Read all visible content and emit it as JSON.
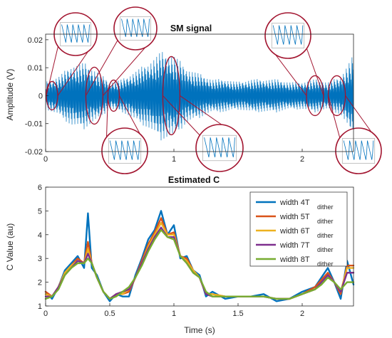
{
  "chart_data": [
    {
      "type": "line",
      "title": "SM signal",
      "xlabel": "",
      "ylabel": "Amplitude (V)",
      "xlim": [
        0,
        2.4
      ],
      "ylim": [
        -0.02,
        0.022
      ],
      "xticks": [
        "0",
        "1",
        "2"
      ],
      "yticks": [
        "-0.02",
        "-0.01",
        "0",
        "0.01",
        "0.02"
      ],
      "color": "#0072BD",
      "zoom_highlight_color": "#A2142F",
      "envelope": {
        "t": [
          0,
          0.1,
          0.2,
          0.3,
          0.4,
          0.5,
          0.6,
          0.7,
          0.8,
          0.9,
          1.0,
          1.1,
          1.2,
          1.3,
          1.4,
          1.5,
          1.6,
          1.7,
          1.8,
          1.9,
          2.0,
          2.1,
          2.2,
          2.3,
          2.4
        ],
        "amp": [
          0.005,
          0.007,
          0.011,
          0.012,
          0.009,
          0.005,
          0.006,
          0.009,
          0.012,
          0.016,
          0.015,
          0.01,
          0.008,
          0.006,
          0.006,
          0.005,
          0.006,
          0.006,
          0.006,
          0.005,
          0.005,
          0.006,
          0.005,
          0.007,
          0.015
        ]
      }
    },
    {
      "type": "line",
      "title": "Estimated C",
      "xlabel": "Time (s)",
      "ylabel": "C Value (au)",
      "xlim": [
        0,
        2.4
      ],
      "ylim": [
        1,
        6
      ],
      "xticks": [
        "0",
        "0.5",
        "1",
        "1.5",
        "2"
      ],
      "yticks": [
        "1",
        "2",
        "3",
        "4",
        "5",
        "6"
      ],
      "legend_position": "top-right",
      "x": [
        0,
        0.05,
        0.1,
        0.15,
        0.2,
        0.25,
        0.3,
        0.33,
        0.36,
        0.4,
        0.45,
        0.5,
        0.55,
        0.6,
        0.65,
        0.7,
        0.75,
        0.8,
        0.85,
        0.9,
        0.95,
        1.0,
        1.05,
        1.1,
        1.15,
        1.2,
        1.25,
        1.3,
        1.4,
        1.5,
        1.6,
        1.7,
        1.8,
        1.9,
        2.0,
        2.1,
        2.15,
        2.2,
        2.25,
        2.3,
        2.35,
        2.4
      ],
      "series": [
        {
          "name": "width 4T",
          "sub": "dither",
          "color": "#0072BD",
          "values": [
            1.6,
            1.3,
            1.8,
            2.5,
            2.8,
            3.1,
            2.6,
            4.9,
            2.6,
            2.3,
            1.6,
            1.2,
            1.5,
            1.4,
            1.4,
            2.3,
            3.0,
            3.8,
            4.2,
            5.0,
            4.0,
            4.4,
            3.0,
            3.1,
            2.5,
            2.3,
            1.4,
            1.6,
            1.3,
            1.4,
            1.4,
            1.5,
            1.2,
            1.3,
            1.6,
            1.8,
            2.2,
            2.6,
            2.0,
            1.3,
            2.9,
            1.9
          ]
        },
        {
          "name": "width 5T",
          "sub": "dither",
          "color": "#D95319",
          "values": [
            1.6,
            1.4,
            1.8,
            2.4,
            2.7,
            3.0,
            2.8,
            3.7,
            2.8,
            2.2,
            1.6,
            1.3,
            1.5,
            1.5,
            1.6,
            2.2,
            2.9,
            3.6,
            4.1,
            4.7,
            4.0,
            4.1,
            3.1,
            3.0,
            2.5,
            2.2,
            1.5,
            1.5,
            1.4,
            1.4,
            1.4,
            1.4,
            1.3,
            1.3,
            1.5,
            1.8,
            2.1,
            2.4,
            2.0,
            1.5,
            2.7,
            2.7
          ]
        },
        {
          "name": "width 6T",
          "sub": "dither",
          "color": "#EDB120",
          "values": [
            1.5,
            1.4,
            1.8,
            2.4,
            2.7,
            2.9,
            2.8,
            3.4,
            2.8,
            2.2,
            1.6,
            1.3,
            1.5,
            1.5,
            1.7,
            2.2,
            2.8,
            3.5,
            4.0,
            4.5,
            4.0,
            4.0,
            3.1,
            2.9,
            2.5,
            2.2,
            1.5,
            1.5,
            1.4,
            1.4,
            1.4,
            1.4,
            1.3,
            1.3,
            1.5,
            1.7,
            2.0,
            2.3,
            2.0,
            1.6,
            2.6,
            2.6
          ]
        },
        {
          "name": "width 7T",
          "sub": "dither",
          "color": "#7E2F8E",
          "values": [
            1.4,
            1.4,
            1.8,
            2.3,
            2.6,
            2.9,
            2.8,
            3.2,
            2.8,
            2.2,
            1.6,
            1.3,
            1.5,
            1.6,
            1.7,
            2.2,
            2.8,
            3.4,
            3.9,
            4.3,
            3.9,
            3.9,
            3.1,
            2.8,
            2.4,
            2.2,
            1.5,
            1.4,
            1.4,
            1.4,
            1.4,
            1.4,
            1.3,
            1.3,
            1.5,
            1.7,
            2.0,
            2.3,
            2.0,
            1.6,
            2.4,
            2.4
          ]
        },
        {
          "name": "width 8T",
          "sub": "dither",
          "color": "#77AC30",
          "values": [
            1.3,
            1.4,
            1.7,
            2.3,
            2.6,
            2.8,
            2.8,
            3.0,
            2.8,
            2.2,
            1.6,
            1.3,
            1.4,
            1.6,
            1.8,
            2.2,
            2.7,
            3.3,
            3.8,
            4.2,
            3.9,
            3.8,
            3.1,
            2.8,
            2.4,
            2.2,
            1.6,
            1.4,
            1.4,
            1.4,
            1.4,
            1.4,
            1.3,
            1.3,
            1.5,
            1.7,
            1.9,
            2.2,
            2.0,
            1.7,
            2.0,
            2.0
          ]
        }
      ]
    }
  ]
}
